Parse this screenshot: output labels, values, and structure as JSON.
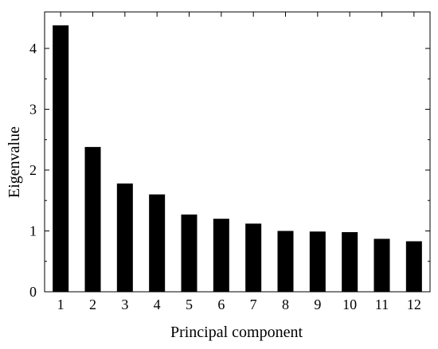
{
  "chart_data": {
    "type": "bar",
    "title": "",
    "xlabel": "Principal component",
    "ylabel": "Eigenvalue",
    "categories": [
      "1",
      "2",
      "3",
      "4",
      "5",
      "6",
      "7",
      "8",
      "9",
      "10",
      "11",
      "12"
    ],
    "values": [
      4.38,
      2.38,
      1.78,
      1.6,
      1.27,
      1.2,
      1.12,
      1.0,
      0.99,
      0.98,
      0.87,
      0.83
    ],
    "ylim": [
      0,
      4.6
    ],
    "yticks": [
      "0",
      "1",
      "2",
      "3",
      "4"
    ],
    "grid": false,
    "legend": "none",
    "colors": {
      "bar": "#000000",
      "axis": "#000000",
      "background": "#ffffff"
    }
  }
}
